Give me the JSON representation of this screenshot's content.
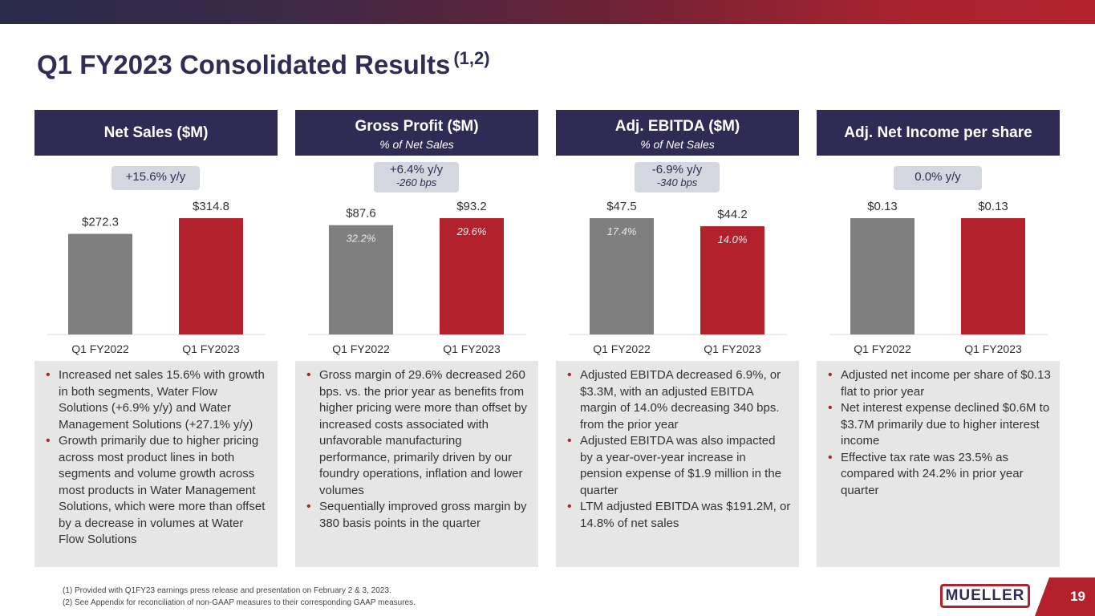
{
  "header": {
    "title": "Q1 FY2023 Consolidated Results",
    "title_sup": "(1,2)"
  },
  "panels": [
    {
      "title": "Net Sales ($M)",
      "subtitle": "",
      "yoy": "+15.6% y/y",
      "bps": "",
      "notes": [
        "Increased net sales 15.6% with growth in both segments, Water Flow Solutions (+6.9% y/y) and Water Management Solutions (+27.1% y/y)",
        "Growth primarily due to higher pricing across most product lines in both segments and volume growth across most products in Water Management Solutions, which were more than offset by a decrease in volumes at Water Flow Solutions"
      ]
    },
    {
      "title": "Gross Profit ($M)",
      "subtitle": "% of Net Sales",
      "yoy": "+6.4% y/y",
      "bps": "-260 bps",
      "notes": [
        "Gross margin of 29.6% decreased 260 bps. vs. the prior year as benefits from higher pricing were more than offset by increased costs associated with unfavorable manufacturing performance, primarily driven by our foundry operations, inflation and lower volumes",
        "Sequentially improved gross margin by 380 basis points in the quarter"
      ]
    },
    {
      "title": "Adj. EBITDA ($M)",
      "subtitle": "% of Net Sales",
      "yoy": "-6.9% y/y",
      "bps": "-340 bps",
      "notes": [
        "Adjusted EBITDA decreased 6.9%, or $3.3M, with an adjusted EBITDA margin of 14.0% decreasing 340 bps. from the prior year",
        "Adjusted EBITDA was also impacted by a year-over-year increase in pension expense of $1.9 million in the quarter",
        "LTM adjusted EBITDA was $191.2M, or 14.8% of net sales"
      ]
    },
    {
      "title": "Adj. Net Income per share",
      "subtitle": "",
      "yoy": "0.0% y/y",
      "bps": "",
      "notes": [
        "Adjusted net income per share of $0.13 flat to prior year",
        "Net interest expense declined $0.6M to $3.7M primarily due to higher interest income",
        "Effective tax rate was 23.5% as compared with 24.2% in prior year quarter"
      ]
    }
  ],
  "chart_data": [
    {
      "type": "bar",
      "title": "Net Sales ($M)",
      "categories": [
        "Q1 FY2022",
        "Q1 FY2023"
      ],
      "values": [
        272.3,
        314.8
      ],
      "value_labels": [
        "$272.3",
        "$314.8"
      ],
      "inner_labels": [
        "",
        ""
      ],
      "ylim": [
        0,
        314.8
      ]
    },
    {
      "type": "bar",
      "title": "Gross Profit ($M)",
      "categories": [
        "Q1 FY2022",
        "Q1 FY2023"
      ],
      "values": [
        87.6,
        93.2
      ],
      "value_labels": [
        "$87.6",
        "$93.2"
      ],
      "inner_labels": [
        "32.2%",
        "29.6%"
      ],
      "ylim": [
        0,
        93.2
      ]
    },
    {
      "type": "bar",
      "title": "Adj. EBITDA ($M)",
      "categories": [
        "Q1 FY2022",
        "Q1 FY2023"
      ],
      "values": [
        47.5,
        44.2
      ],
      "value_labels": [
        "$47.5",
        "$44.2"
      ],
      "inner_labels": [
        "17.4%",
        "14.0%"
      ],
      "ylim": [
        0,
        47.5
      ]
    },
    {
      "type": "bar",
      "title": "Adj. Net Income per share",
      "categories": [
        "Q1 FY2022",
        "Q1 FY2023"
      ],
      "values": [
        0.13,
        0.13
      ],
      "value_labels": [
        "$0.13",
        "$0.13"
      ],
      "inner_labels": [
        "",
        ""
      ],
      "ylim": [
        0,
        0.13
      ]
    }
  ],
  "colors": {
    "prior": "#7f7f7f",
    "current": "#b3222c",
    "navy": "#2f2b55"
  },
  "footnotes": [
    "(1)  Provided with Q1FY23 earnings press release and presentation on February 2 & 3, 2023.",
    "(2)  See Appendix for reconciliation of non-GAAP measures to their corresponding GAAP measures."
  ],
  "logo": "MUELLER",
  "page_number": "19"
}
